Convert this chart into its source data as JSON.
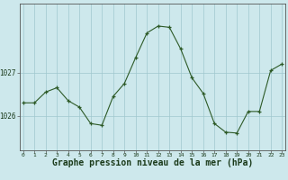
{
  "x": [
    0,
    1,
    2,
    3,
    4,
    5,
    6,
    7,
    8,
    9,
    10,
    11,
    12,
    13,
    14,
    15,
    16,
    17,
    18,
    19,
    20,
    21,
    22,
    23
  ],
  "y": [
    1026.3,
    1026.3,
    1026.55,
    1026.65,
    1026.35,
    1026.2,
    1025.82,
    1025.78,
    1026.45,
    1026.75,
    1027.35,
    1027.92,
    1028.08,
    1028.05,
    1027.55,
    1026.88,
    1026.52,
    1025.82,
    1025.62,
    1025.6,
    1026.1,
    1026.1,
    1027.05,
    1027.2
  ],
  "line_color": "#2d5a27",
  "marker": "+",
  "marker_color": "#2d5a27",
  "bg_color": "#cde8ec",
  "plot_bg_color": "#cde8ec",
  "grid_color": "#a0c8ce",
  "axis_color": "#555555",
  "xlabel": "Graphe pression niveau de la mer (hPa)",
  "xlabel_fontsize": 7.0,
  "ytick_labels": [
    "1026",
    "1027"
  ],
  "ytick_values": [
    1026,
    1027
  ],
  "ylim": [
    1025.2,
    1028.6
  ],
  "xlim": [
    -0.3,
    23.3
  ],
  "figsize": [
    3.2,
    2.0
  ],
  "dpi": 100
}
